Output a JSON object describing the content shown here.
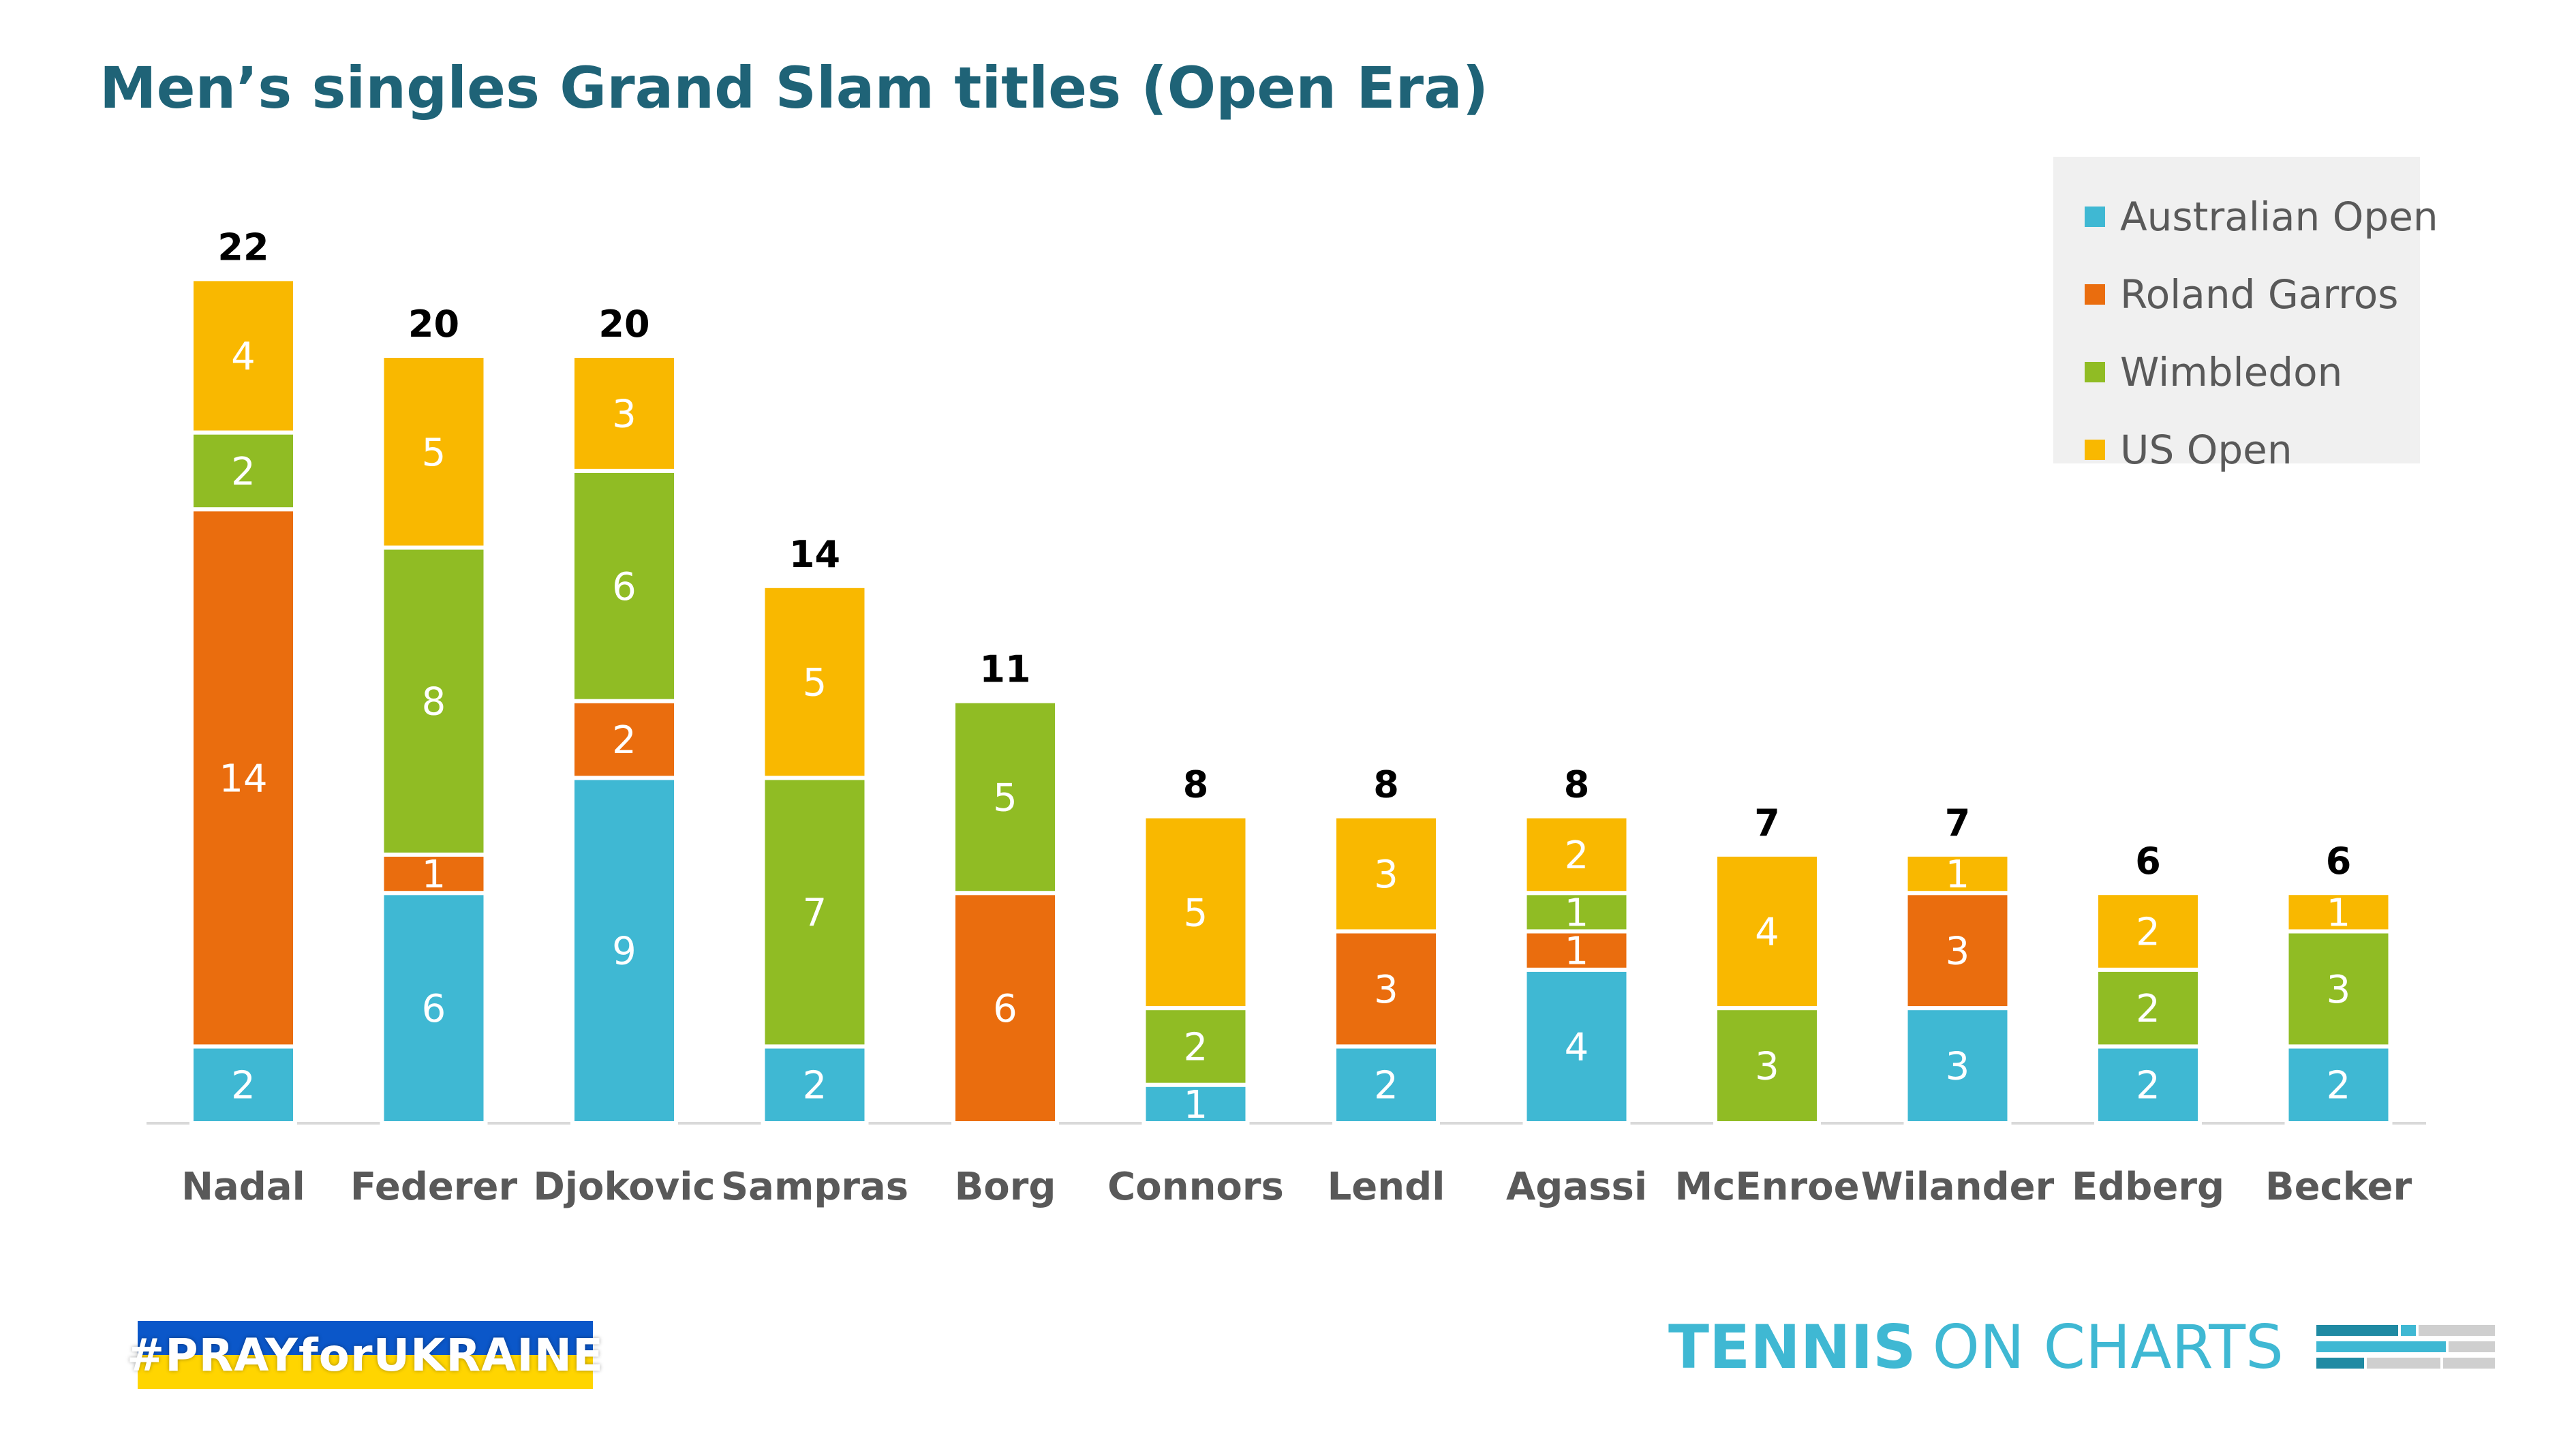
{
  "chart_data": {
    "type": "bar",
    "stacked": true,
    "title": "Men’s singles Grand Slam titles (Open Era)",
    "xlabel": "",
    "ylabel": "",
    "ylim": [
      0,
      22
    ],
    "grid": false,
    "legend_position": "top-right",
    "categories": [
      "Nadal",
      "Federer",
      "Djokovic",
      "Sampras",
      "Borg",
      "Connors",
      "Lendl",
      "Agassi",
      "McEnroe",
      "Wilander",
      "Edberg",
      "Becker"
    ],
    "series": [
      {
        "name": "Australian Open",
        "color": "#3fb8d3",
        "values": [
          2,
          6,
          9,
          2,
          0,
          1,
          2,
          4,
          0,
          3,
          2,
          2
        ]
      },
      {
        "name": "Roland Garros",
        "color": "#ea6d0e",
        "values": [
          14,
          1,
          2,
          0,
          6,
          0,
          3,
          1,
          0,
          3,
          0,
          0
        ]
      },
      {
        "name": "Wimbledon",
        "color": "#90bc24",
        "values": [
          2,
          8,
          6,
          7,
          5,
          2,
          0,
          1,
          3,
          0,
          2,
          3
        ]
      },
      {
        "name": "US Open",
        "color": "#f9b800",
        "values": [
          4,
          5,
          3,
          5,
          0,
          5,
          3,
          2,
          4,
          1,
          2,
          1
        ]
      }
    ],
    "totals": [
      22,
      20,
      20,
      14,
      11,
      8,
      8,
      8,
      7,
      7,
      6,
      6
    ]
  },
  "footer": {
    "campaign": "#PRAYforUKRAINE",
    "brand_bold": "TENNIS",
    "brand_light": "ON CHARTS"
  }
}
